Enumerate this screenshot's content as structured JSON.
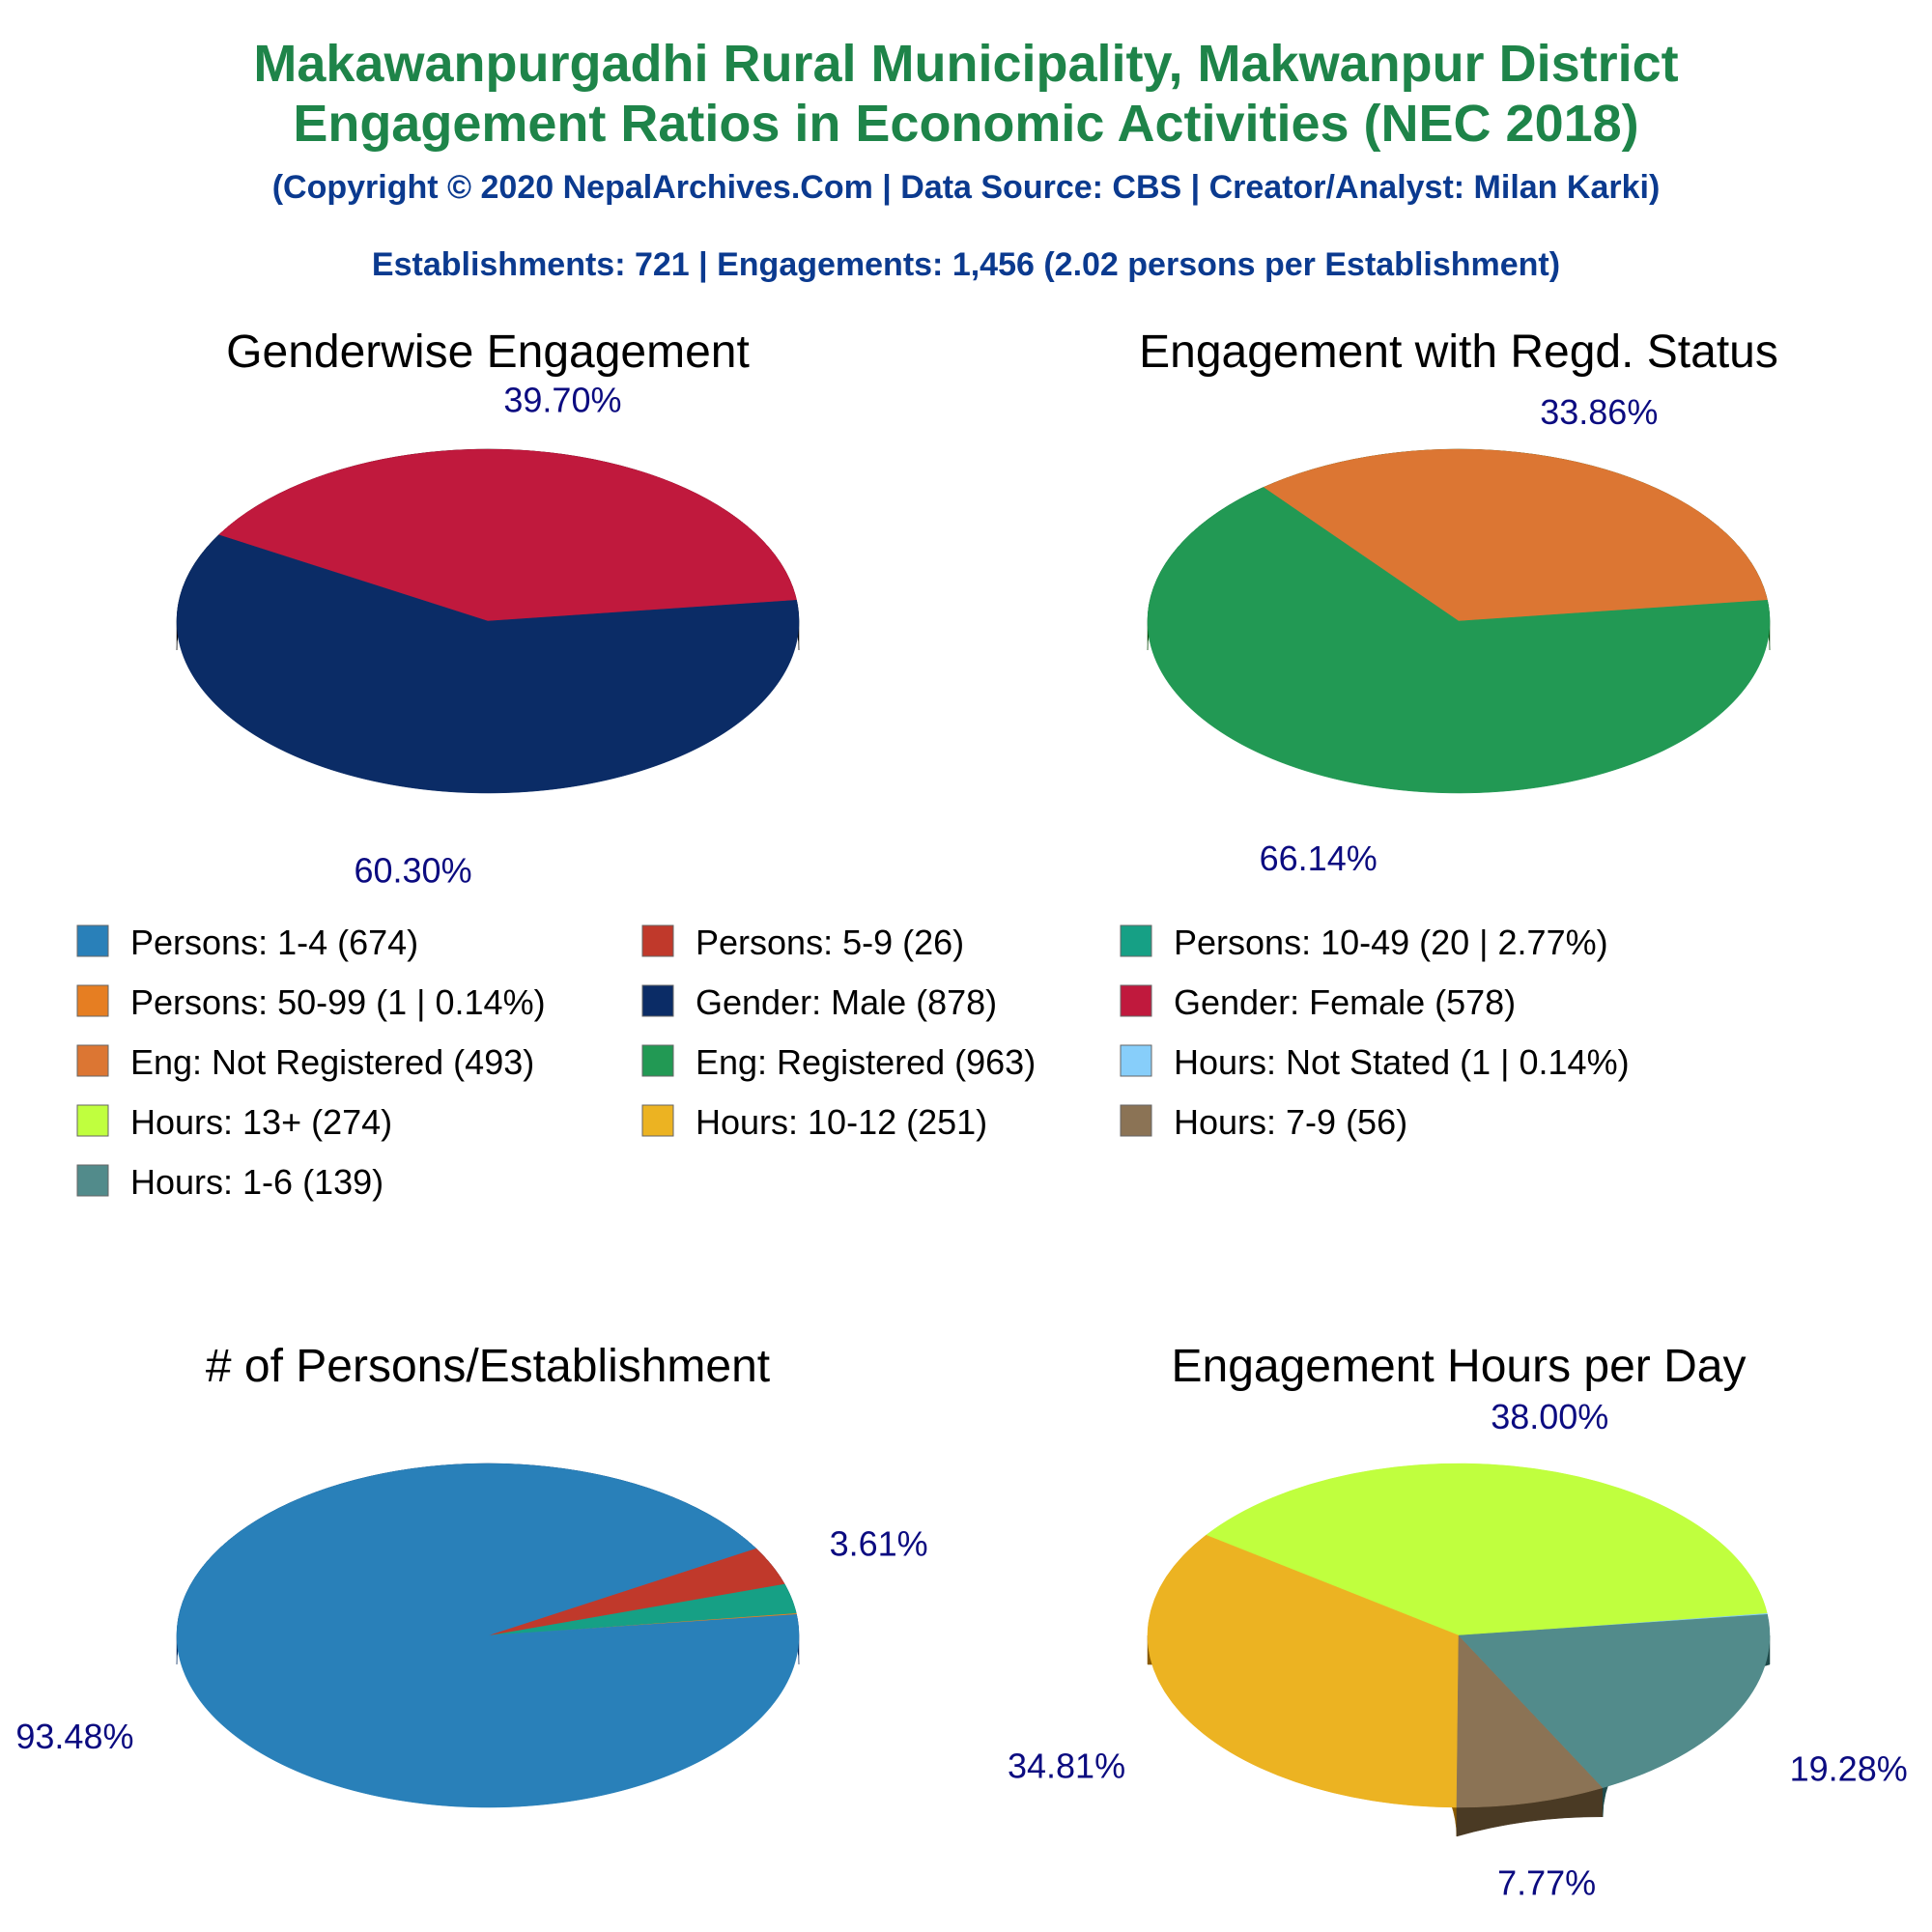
{
  "header": {
    "title_line1": "Makawanpurgadhi Rural Municipality, Makwanpur District",
    "title_line2": "Engagement Ratios in Economic Activities (NEC 2018)",
    "copyright": "(Copyright © 2020 NepalArchives.Com | Data Source: CBS | Creator/Analyst: Milan Karki)",
    "summary": "Establishments: 721 | Engagements: 1,456 (2.02 persons per Establishment)"
  },
  "colors": {
    "title": "#1e8449",
    "subtitle": "#0b3a8f",
    "label": "#0b0b80",
    "chart_title": "#000000"
  },
  "legend": [
    {
      "label": "Persons: 1-4 (674)",
      "color": "#2980b9"
    },
    {
      "label": "Persons: 5-9 (26)",
      "color": "#c0392b"
    },
    {
      "label": "Persons: 10-49 (20 | 2.77%)",
      "color": "#16a085"
    },
    {
      "label": "Persons: 50-99 (1 | 0.14%)",
      "color": "#e67e22"
    },
    {
      "label": "Gender: Male (878)",
      "color": "#0b2c66"
    },
    {
      "label": "Gender: Female (578)",
      "color": "#c0193d"
    },
    {
      "label": "Eng: Not Registered (493)",
      "color": "#dc7633"
    },
    {
      "label": "Eng: Registered (963)",
      "color": "#229954"
    },
    {
      "label": "Hours: Not Stated (1 | 0.14%)",
      "color": "#87cefa"
    },
    {
      "label": "Hours: 13+ (274)",
      "color": "#c0ff3e"
    },
    {
      "label": "Hours: 10-12 (251)",
      "color": "#ecb322"
    },
    {
      "label": "Hours: 7-9 (56)",
      "color": "#8b7355"
    },
    {
      "label": "Hours: 1-6 (139)",
      "color": "#528b8b"
    }
  ],
  "chart_data": [
    {
      "type": "pie",
      "title": "Genderwise Engagement",
      "start_angle": 7,
      "slices": [
        {
          "name": "Gender: Female",
          "value": 578,
          "color": "#c0193d",
          "side": "#660000",
          "label": "39.70%"
        },
        {
          "name": "Gender: Male",
          "value": 878,
          "color": "#0b2c66",
          "side": "#000000",
          "label": "60.30%"
        }
      ]
    },
    {
      "type": "pie",
      "title": "Engagement with Regd. Status",
      "start_angle": 7,
      "slices": [
        {
          "name": "Eng: Not Registered",
          "value": 493,
          "color": "#dc7633",
          "side": "#7b1a00",
          "label": "33.86%"
        },
        {
          "name": "Eng: Registered",
          "value": 963,
          "color": "#229954",
          "side": "#004400",
          "label": "66.14%"
        }
      ]
    },
    {
      "type": "pie",
      "title": "# of Persons/Establishment",
      "start_angle": 7,
      "slices": [
        {
          "name": "Persons: 50-99",
          "value": 1,
          "color": "#e67e22",
          "side": "#6e2c00",
          "label": ""
        },
        {
          "name": "Persons: 10-49",
          "value": 20,
          "color": "#16a085",
          "side": "#0b5345",
          "label": ""
        },
        {
          "name": "Persons: 5-9",
          "value": 26,
          "color": "#c0392b",
          "side": "#640000",
          "label": "3.61%"
        },
        {
          "name": "Persons: 1-4",
          "value": 674,
          "color": "#2980b9",
          "side": "#00265c",
          "label": "93.48%"
        }
      ]
    },
    {
      "type": "pie",
      "title": "Engagement Hours per Day",
      "start_angle": 7,
      "slices": [
        {
          "name": "Hours: Not Stated",
          "value": 1,
          "color": "#87cefa",
          "side": "#3b7ca6",
          "label": ""
        },
        {
          "name": "Hours: 13+",
          "value": 274,
          "color": "#c0ff3e",
          "side": "#66a300",
          "label": "38.00%"
        },
        {
          "name": "Hours: 10-12",
          "value": 251,
          "color": "#ecb322",
          "side": "#8a5a00",
          "label": "34.81%"
        },
        {
          "name": "Hours: 7-9",
          "value": 56,
          "color": "#8b7355",
          "side": "#4a3a24",
          "label": "7.77%"
        },
        {
          "name": "Hours: 1-6",
          "value": 139,
          "color": "#528b8b",
          "side": "#1f4a4a",
          "label": "19.28%"
        }
      ]
    }
  ]
}
